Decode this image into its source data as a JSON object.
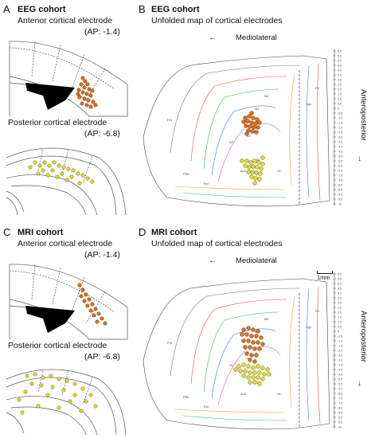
{
  "panels": {
    "A": {
      "letter": "A",
      "cohort": "EEG cohort",
      "anterior_label": "Anterior cortical electrode",
      "anterior_ap": "(AP: -1.4)",
      "posterior_label": "Posterior cortical electrode",
      "posterior_ap": "(AP: -6.8)"
    },
    "B": {
      "letter": "B",
      "cohort": "EEG cohort",
      "subtitle": "Unfolded map of cortical electrodes",
      "mediolateral": "Mediolateral",
      "anteroposterior": "Anteroposterior"
    },
    "C": {
      "letter": "C",
      "cohort": "MRI cohort",
      "anterior_label": "Anterior cortical electrode",
      "anterior_ap": "(AP: -1.4)",
      "posterior_label": "Posterior cortical electrode",
      "posterior_ap": "(AP: -6.8)"
    },
    "D": {
      "letter": "D",
      "cohort": "MRI cohort",
      "subtitle": "Unfolded map of cortical electrodes",
      "mediolateral": "Mediolateral",
      "anteroposterior": "Anteroposterior",
      "scale_bar": "1mm"
    }
  },
  "ap_axis_ticks": [
    "6.0",
    "5.5",
    "5.0",
    "4.5",
    "4.0",
    "3.5",
    "3.0",
    "2.5",
    "2.0",
    "1.5",
    "1.0",
    "0.5",
    "0",
    "-0.5",
    "-1.0",
    "-1.5",
    "-2.0",
    "-2.5",
    "-3.0",
    "-3.5",
    "-4.0",
    "-4.5",
    "-5.0",
    "-5.5",
    "-6.0",
    "-6.5",
    "-7.0",
    "-7.5",
    "-8.0",
    "-8.5",
    "-9.0",
    "-9.5",
    "-10"
  ],
  "region_labels_map": [
    "Fr3",
    "Prl",
    "Cg1",
    "M2",
    "M1",
    "S1",
    "S1BF",
    "S2",
    "AIP",
    "V2L",
    "V1",
    "Au1",
    "AuD",
    "Ect",
    "PRh",
    "DLEnt",
    "LEnt",
    "MEnt",
    "RSA",
    "RSGc",
    "PtA",
    "S1HL",
    "S1J",
    "S1ULp"
  ],
  "region_labels_coronal_anterior": [
    "M2",
    "M1",
    "S1J",
    "S1BF",
    "S1HL",
    "Cg1",
    "Cg2",
    "S2"
  ],
  "region_labels_coronal_posterior": [
    "RSA",
    "RSGc",
    "V2MM",
    "V2ML",
    "V1B",
    "V2L",
    "Au1",
    "TeA",
    "Ect",
    "PRh",
    "LEnt"
  ],
  "colors": {
    "anterior_dot": "#e0701c",
    "posterior_dot": "#e4e014",
    "outline": "#333333"
  }
}
